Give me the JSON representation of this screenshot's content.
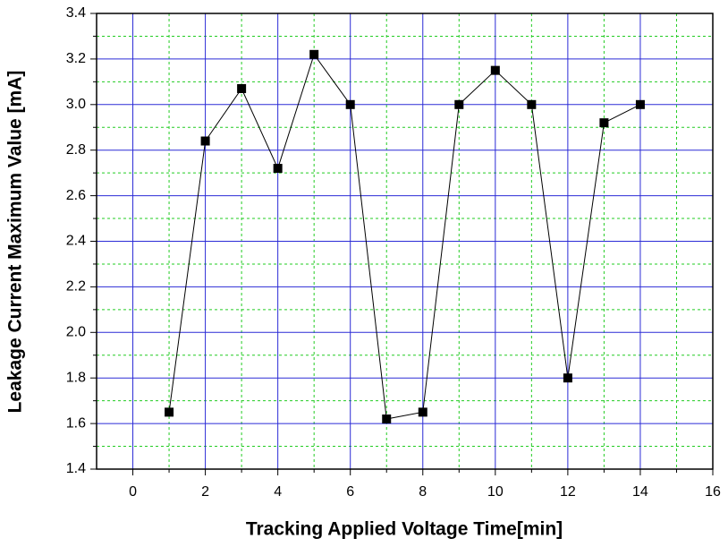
{
  "chart_data": {
    "type": "line",
    "xlabel": "Tracking Applied Voltage Time[min]",
    "ylabel": "Leakage Current Maximum Value [mA]",
    "x": [
      1,
      2,
      3,
      4,
      5,
      6,
      7,
      8,
      9,
      10,
      11,
      12,
      13,
      14
    ],
    "series": [
      {
        "color": "#000000",
        "values": [
          1.65,
          2.84,
          3.07,
          2.72,
          3.22,
          3.0,
          1.62,
          1.65,
          3.0,
          3.15,
          3.0,
          1.8,
          2.92,
          3.0
        ]
      }
    ],
    "xlim": [
      -1,
      16
    ],
    "xticks": [
      0,
      2,
      4,
      6,
      8,
      10,
      12,
      14,
      16
    ],
    "ylim": [
      1.4,
      3.4
    ],
    "yticks": [
      1.4,
      1.6,
      1.8,
      {
        "value": 2,
        "label": "2.0"
      },
      2.2,
      2.4,
      2.6,
      2.8,
      {
        "value": 3,
        "label": "3.0"
      },
      3.2,
      3.4
    ],
    "grid": true,
    "grid_color": "#2b2bd6",
    "minor_grid_color": "#22cc22"
  }
}
